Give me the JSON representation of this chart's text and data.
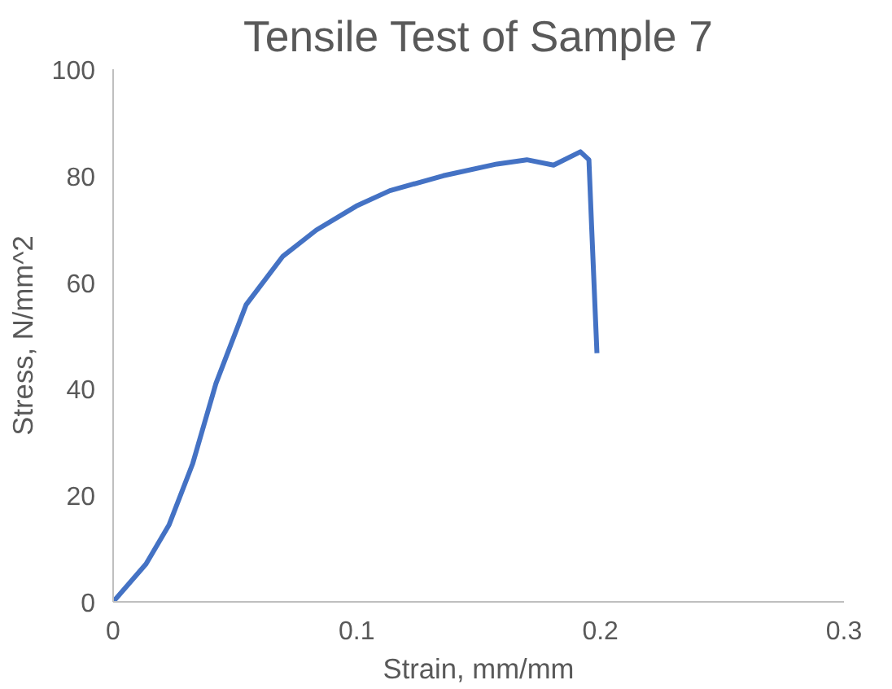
{
  "chart_data": {
    "type": "line",
    "title": "Tensile Test of Sample 7",
    "xlabel": "Strain, mm/mm",
    "ylabel": "Stress, N/mm^2",
    "x": [
      0,
      0.0135,
      0.023,
      0.0327,
      0.0422,
      0.0546,
      0.0697,
      0.0834,
      0.0998,
      0.1136,
      0.1355,
      0.1575,
      0.1698,
      0.1808,
      0.1918,
      0.1953,
      0.1964,
      0.1986
    ],
    "series": [
      {
        "color": "#4472c4",
        "values": [
          0,
          7.1,
          14.5,
          26,
          41,
          55.8,
          64.9,
          69.8,
          74.3,
          77.2,
          80,
          82.2,
          83,
          82,
          84.5,
          83,
          70.6,
          46.7
        ]
      }
    ],
    "xlim": [
      0,
      0.3
    ],
    "xticks": [
      0,
      0.1,
      0.2,
      0.3
    ],
    "ylim": [
      0,
      100
    ],
    "yticks": [
      0,
      20,
      40,
      60,
      80,
      100
    ],
    "grid": false,
    "marker": "none",
    "line_style": "solid"
  }
}
